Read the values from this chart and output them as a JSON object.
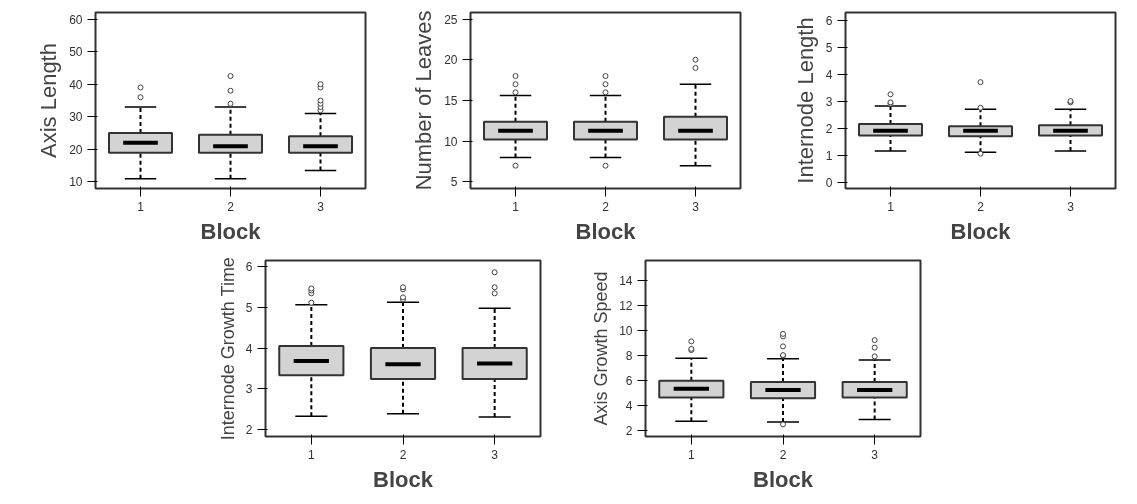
{
  "chart_data": [
    {
      "type": "box",
      "categories": [
        "1",
        "2",
        "3"
      ],
      "xlabel": "Block",
      "ylabel": "Axis Length",
      "ylim": [
        8,
        62
      ],
      "yticks": [
        10,
        20,
        30,
        40,
        50,
        60
      ],
      "color": "#d3d3d3",
      "boxes": [
        {
          "low": 11,
          "q1": 19,
          "median": 22,
          "q3": 25,
          "high": 33,
          "outliers": [
            36,
            39
          ]
        },
        {
          "low": 11,
          "q1": 19,
          "median": 21,
          "q3": 24.5,
          "high": 33,
          "outliers": [
            34,
            38,
            42.5
          ]
        },
        {
          "low": 13.5,
          "q1": 19,
          "median": 21,
          "q3": 24,
          "high": 31,
          "outliers": [
            32,
            33,
            34,
            35,
            39,
            40
          ]
        }
      ]
    },
    {
      "type": "box",
      "categories": [
        "1",
        "2",
        "3"
      ],
      "xlabel": "Block",
      "ylabel": "Number of Leaves",
      "ylim": [
        4.2,
        25.8
      ],
      "yticks": [
        5,
        10,
        15,
        20,
        25
      ],
      "color": "#d3d3d3",
      "boxes": [
        {
          "low": 8,
          "q1": 10.2,
          "median": 11.3,
          "q3": 12.4,
          "high": 15.6,
          "outliers": [
            7,
            16,
            17,
            18
          ]
        },
        {
          "low": 8,
          "q1": 10.2,
          "median": 11.3,
          "q3": 12.4,
          "high": 15.6,
          "outliers": [
            7,
            16,
            17,
            18
          ]
        },
        {
          "low": 7,
          "q1": 10.2,
          "median": 11.3,
          "q3": 13,
          "high": 17,
          "outliers": [
            19,
            20
          ]
        }
      ]
    },
    {
      "type": "box",
      "categories": [
        "1",
        "2",
        "3"
      ],
      "xlabel": "Block",
      "ylabel": "Internode Length",
      "ylim": [
        -0.24,
        6.28
      ],
      "yticks": [
        0,
        1,
        2,
        3,
        4,
        5,
        6
      ],
      "color": "#d3d3d3",
      "boxes": [
        {
          "low": 1.15,
          "q1": 1.72,
          "median": 1.9,
          "q3": 2.15,
          "high": 2.82,
          "outliers": [
            2.9,
            2.95,
            3.25
          ]
        },
        {
          "low": 1.1,
          "q1": 1.7,
          "median": 1.9,
          "q3": 2.07,
          "high": 2.7,
          "outliers": [
            1.05,
            2.75,
            3.7
          ]
        },
        {
          "low": 1.15,
          "q1": 1.72,
          "median": 1.9,
          "q3": 2.1,
          "high": 2.7,
          "outliers": [
            2.95,
            3.0
          ]
        }
      ]
    },
    {
      "type": "box",
      "categories": [
        "1",
        "2",
        "3"
      ],
      "xlabel": "Block",
      "ylabel": "Internode Growth Time",
      "ylim": [
        1.82,
        6.16
      ],
      "yticks": [
        2,
        3,
        4,
        5,
        6
      ],
      "color": "#d3d3d3",
      "boxes": [
        {
          "low": 2.32,
          "q1": 3.33,
          "median": 3.68,
          "q3": 4.05,
          "high": 5.07,
          "outliers": [
            5.12,
            5.35,
            5.42,
            5.47
          ]
        },
        {
          "low": 2.38,
          "q1": 3.24,
          "median": 3.6,
          "q3": 4.0,
          "high": 5.13,
          "outliers": [
            5.2,
            5.25,
            5.45,
            5.5
          ]
        },
        {
          "low": 2.3,
          "q1": 3.24,
          "median": 3.62,
          "q3": 4.0,
          "high": 4.98,
          "outliers": [
            5.35,
            5.5,
            5.87
          ]
        }
      ]
    },
    {
      "type": "box",
      "categories": [
        "1",
        "2",
        "3"
      ],
      "xlabel": "Block",
      "ylabel": "Axis Growth Speed",
      "ylim": [
        1.48,
        15.58
      ],
      "yticks": [
        2,
        4,
        6,
        8,
        10,
        12,
        14
      ],
      "color": "#d3d3d3",
      "boxes": [
        {
          "low": 2.7,
          "q1": 4.6,
          "median": 5.3,
          "q3": 5.95,
          "high": 7.75,
          "outliers": [
            8.4,
            8.5,
            9.1
          ]
        },
        {
          "low": 2.65,
          "q1": 4.55,
          "median": 5.2,
          "q3": 5.85,
          "high": 7.7,
          "outliers": [
            2.45,
            7.95,
            8.0,
            8.7,
            9.5,
            9.7
          ]
        },
        {
          "low": 2.85,
          "q1": 4.6,
          "median": 5.2,
          "q3": 5.85,
          "high": 7.6,
          "outliers": [
            7.9,
            8.6,
            9.2
          ]
        }
      ]
    }
  ]
}
